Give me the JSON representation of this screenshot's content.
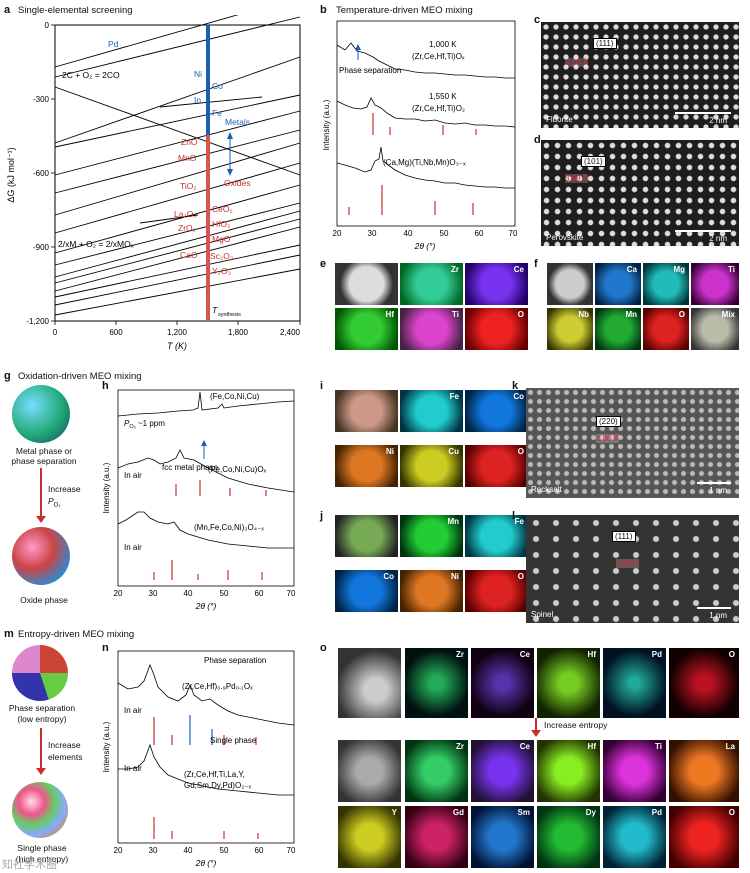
{
  "panels": {
    "a": {
      "letter": "a",
      "title": "Single-elemental screening"
    },
    "b": {
      "letter": "b",
      "title": "Temperature-driven MEO mixing"
    },
    "c": {
      "letter": "c"
    },
    "d": {
      "letter": "d"
    },
    "e": {
      "letter": "e"
    },
    "f": {
      "letter": "f"
    },
    "g": {
      "letter": "g",
      "title": "Oxidation-driven MEO mixing"
    },
    "h": {
      "letter": "h"
    },
    "i": {
      "letter": "i"
    },
    "j": {
      "letter": "j"
    },
    "k": {
      "letter": "k"
    },
    "l": {
      "letter": "l"
    },
    "m": {
      "letter": "m",
      "title": "Entropy-driven MEO mixing"
    },
    "n": {
      "letter": "n"
    },
    "o": {
      "letter": "o"
    }
  },
  "ellingham": {
    "ylabel": "ΔG (kJ mol⁻¹)",
    "xlabel": "T (K)",
    "xticks": [
      "0",
      "600",
      "1,200",
      "1,800",
      "2,400"
    ],
    "yticks": [
      "0",
      "-300",
      "-600",
      "-900",
      "-1,200"
    ],
    "labels_blue": [
      "Pd",
      "Ni",
      "Co",
      "In",
      "Fe",
      "Metals"
    ],
    "labels_red": [
      "ZnO",
      "MnO",
      "TiO₂",
      "La₂O₃",
      "ZrO₂",
      "CaO",
      "CeO₂",
      "HfO₂",
      "MgO",
      "Sc₂O₃",
      "Y₂O₃",
      "Oxides"
    ],
    "eq1": "2C + O₂ = 2CO",
    "eq2": "2/xM + O₂ = 2/xMOₓ",
    "tsyn": "T",
    "tsyn_sub": "synthesis"
  },
  "xrd_b": {
    "ylabel": "Intensity (a.u.)",
    "xlabel": "2θ (°)",
    "xticks": [
      "20",
      "30",
      "40",
      "50",
      "60",
      "70"
    ],
    "phase_sep": "Phase separation",
    "t1": "1,000 K",
    "c1": "(Zr,Ce,Hf,Ti)Oₓ",
    "t2": "1,550 K",
    "c2": "(Zr,Ce,Hf,Ti)O₂",
    "c3": "(Ca,Mg)(Ti,Nb,Mn)O₃₋ₓ"
  },
  "tem_c": {
    "plane": "(111)",
    "d": "3.10 Å",
    "label": "Fluorite",
    "scale": "2 nm"
  },
  "tem_d": {
    "plane": "(101)",
    "d": "3.89 Å",
    "label": "Perovskite",
    "scale": "2 nm"
  },
  "tem_k": {
    "plane": "(220)",
    "d": "1.86 Å",
    "label": "Rocksalt",
    "scale": "1 nm"
  },
  "tem_l": {
    "plane": "(111)",
    "d": "4.99 Å",
    "label": "Spinel",
    "scale": "1 nm"
  },
  "eds_e": [
    "Zr",
    "Ce",
    "Hf",
    "Ti",
    "O"
  ],
  "eds_f": [
    "Ca",
    "Mg",
    "Ti",
    "Nb",
    "Mn",
    "O",
    "Mix"
  ],
  "eds_i": [
    "Fe",
    "Co",
    "Ni",
    "Cu",
    "O"
  ],
  "eds_j": [
    "Mn",
    "Fe",
    "Co",
    "Ni",
    "O"
  ],
  "eds_o1": [
    "Zr",
    "Ce",
    "Hf",
    "Pd",
    "O"
  ],
  "eds_o2": [
    "Zr",
    "Ce",
    "Hf",
    "Ti",
    "La"
  ],
  "eds_o3": [
    "Y",
    "Gd",
    "Sm",
    "Dy",
    "Pd",
    "O"
  ],
  "o_arrow": "Increase entropy",
  "g_schem": {
    "top": "Metal phase or\nphase separation",
    "arrow1": "Increase",
    "arrow2": "P",
    "arrow2sub": "O₂",
    "bottom": "Oxide phase"
  },
  "m_schem": {
    "top1": "Phase separation",
    "top2": "(low entropy)",
    "arrow1": "Increase",
    "arrow2": "elements",
    "bottom1": "Single phase",
    "bottom2": "(high entropy)"
  },
  "xrd_h": {
    "ylabel": "Intensity (a.u.)",
    "xlabel": "2θ (°)",
    "xticks": [
      "20",
      "30",
      "40",
      "50",
      "60",
      "70"
    ],
    "c0": "(Fe,Co,Ni,Cu)",
    "po2": "P",
    "po2sub": "O₂",
    "po2val": " ~1 ppm",
    "fcc": "fcc metal phase",
    "air1": "In air",
    "c1": "(Fe,Co,Ni,Cu)Oₓ",
    "air2": "In air",
    "c2": "(Mn,Fe,Co,Ni)₃O₄₋ₓ"
  },
  "xrd_n": {
    "ylabel": "Intensity (a.u.)",
    "xlabel": "2θ (°)",
    "xticks": [
      "20",
      "30",
      "40",
      "50",
      "60",
      "70"
    ],
    "ps": "Phase separation",
    "c1": "(Zr,Ce,Hf)₀.₉Pd₀.₁Oₓ",
    "air1": "In air",
    "sp": "Single phase",
    "c2a": "(Zr,Ce,Hf,Ti,La,Y,",
    "c2b": "Gd,Sm,Dy,Pd)O₂₋ₓ",
    "air2": "In air"
  },
  "watermark": "知社学术圈"
}
